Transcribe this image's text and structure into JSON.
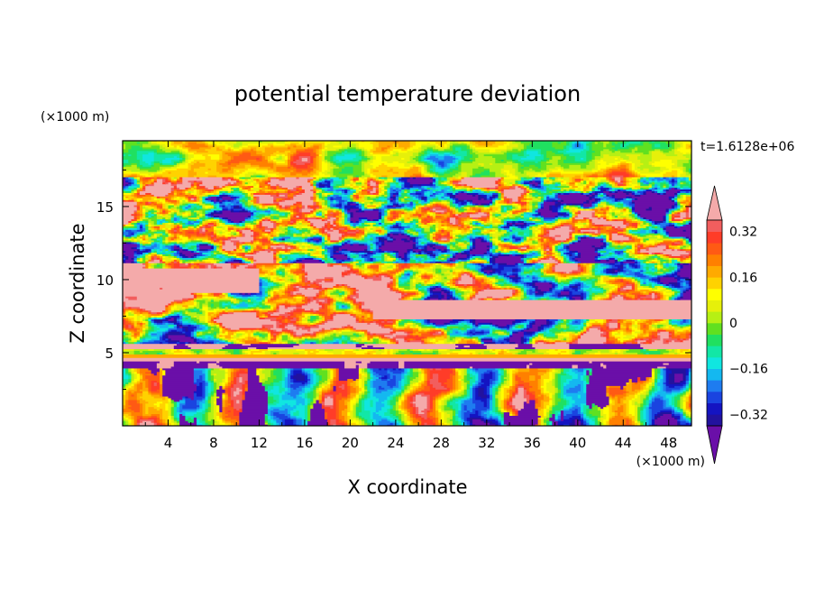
{
  "chart_data": {
    "type": "heatmap",
    "title": "potential temperature deviation",
    "xlabel": "X coordinate",
    "ylabel": "Z coordinate",
    "x_unit_label": "(×1000 m)",
    "y_unit_label": "(×1000 m)",
    "time_label": "t=1.6128e+06",
    "xlim": [
      0,
      50
    ],
    "ylim": [
      0,
      19.5
    ],
    "x_ticks": [
      4,
      8,
      12,
      16,
      20,
      24,
      28,
      32,
      36,
      40,
      44,
      48
    ],
    "x_tick_labels": [
      "4",
      "8",
      "12",
      "16",
      "20",
      "24",
      "28",
      "32",
      "36",
      "40",
      "44",
      "48"
    ],
    "y_ticks": [
      5,
      10,
      15
    ],
    "y_tick_labels": [
      "5",
      "10",
      "15"
    ],
    "colorbar": {
      "levels": [
        -0.4,
        -0.36,
        -0.32,
        -0.28,
        -0.24,
        -0.2,
        -0.16,
        -0.12,
        -0.08,
        -0.04,
        0,
        0.04,
        0.08,
        0.12,
        0.16,
        0.2,
        0.24,
        0.28,
        0.32,
        0.36,
        0.4
      ],
      "colors": [
        "#6a0fa8",
        "#22129e",
        "#1414c2",
        "#1a44e0",
        "#1e7cf0",
        "#14b8f0",
        "#10e6e0",
        "#12e7a6",
        "#20e060",
        "#60e020",
        "#b6f014",
        "#e6f00a",
        "#ffff00",
        "#ffd200",
        "#ffaa00",
        "#ff8000",
        "#ff5a14",
        "#ff3c28",
        "#f25e5e",
        "#f4aaaa"
      ],
      "tick_values": [
        0.32,
        0.16,
        0,
        -0.16,
        -0.32
      ],
      "tick_labels": [
        "0.32",
        "0.16",
        "0",
        "−0.16",
        "−0.32"
      ],
      "extend": "both"
    },
    "field_description_layers": [
      {
        "z_range": [
          0,
          4
        ],
        "note": "vertical columns, alternating warm (red/orange) and cool (green/cyan), with purple plumes"
      },
      {
        "z_range": [
          4,
          5
        ],
        "note": "thin purple band near z=4.2 and thin pink/yellow stripes near z=4.5-5"
      },
      {
        "z_range": [
          5,
          11
        ],
        "note": "large pink (positive) and purple (negative) patches"
      },
      {
        "z_range": [
          11,
          17
        ],
        "note": "mixed lenticular cells of all colors"
      },
      {
        "z_range": [
          17,
          19.5
        ],
        "note": "mostly green/yellow with cyan lobes"
      }
    ]
  }
}
